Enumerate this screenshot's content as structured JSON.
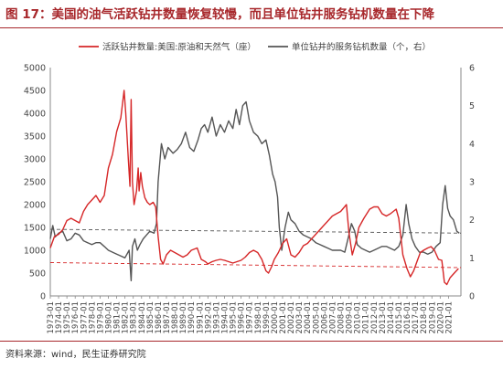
{
  "figure": {
    "title": "图 17：美国的油气活跃钻井数量恢复较慢，而且单位钻井服务钻机数量在下降",
    "source": "资料来源：wind，民生证券研究院"
  },
  "colors": {
    "red": "#d62728",
    "gray": "#555555",
    "title": "#a8282c"
  },
  "chart_data": {
    "type": "line",
    "legend": [
      {
        "name": "活跃钻井数量:美国:原油和天然气（座）",
        "color": "#d62728"
      },
      {
        "name": "单位钻井的服务钻机数量（个，右）",
        "color": "#555555"
      }
    ],
    "legend_placement": "top",
    "y_left": {
      "range": [
        0,
        5000
      ],
      "ticks": [
        "0",
        "500",
        "1000",
        "1500",
        "2000",
        "2500",
        "3000",
        "3500",
        "4000",
        "4500",
        "5000"
      ]
    },
    "y_right": {
      "range": [
        0,
        6
      ],
      "ticks": [
        "0",
        "1",
        "2",
        "3",
        "4",
        "5",
        "6"
      ]
    },
    "x_range": [
      1973.0,
      2022.5
    ],
    "x_ticks": [
      "1973-01",
      "1974-01",
      "1975-01",
      "1976-01",
      "1977-01",
      "1978-01",
      "1979-01",
      "1980-01",
      "1981-01",
      "1982-01",
      "1983-01",
      "1984-01",
      "1985-01",
      "1986-01",
      "1987-01",
      "1988-01",
      "1989-01",
      "1990-01",
      "1991-01",
      "1992-01",
      "1993-01",
      "1994-01",
      "1995-01",
      "1996-01",
      "1997-01",
      "1998-01",
      "1999-01",
      "2000-01",
      "2001-01",
      "2002-01",
      "2003-01",
      "2004-01",
      "2005-01",
      "2006-01",
      "2007-01",
      "2008-01",
      "2009-01",
      "2010-01",
      "2011-01",
      "2012-01",
      "2013-01",
      "2014-01",
      "2015-01",
      "2016-01",
      "2017-01",
      "2018-01",
      "2019-01",
      "2020-01",
      "2021-01"
    ],
    "x_tick_labels": [
      "1973-01",
      "1974-01",
      "1975-01",
      "1976-01",
      "1977-01",
      "1978-01",
      "1979-01",
      "1980-01",
      "1981-01",
      "1982-01",
      "1983-01",
      "1984-01",
      "1985-01",
      "1986-01",
      "1987-01",
      "1988-01",
      "1989-01",
      "1990-01",
      "1991-01",
      "1992-01",
      "1993-01",
      "1994-01",
      "1995-01",
      "1996-01",
      "1997-01",
      "1998-01",
      "1999-01",
      "2000-01",
      "2001-01",
      "2002-01",
      "2003-01",
      "2004-01",
      "2005-01",
      "2006-01",
      "2007-01",
      "2008-01",
      "2009-01",
      "2010-01",
      "2011-01",
      "2012-01",
      "2013-01",
      "2014-01",
      "2015-01",
      "2016-01",
      "2017-01",
      "2018-01",
      "2019-01",
      "2020-01",
      "2021-01"
    ],
    "series": [
      {
        "name": "活跃钻井数量:美国:原油和天然气（座）",
        "axis": "left",
        "points": [
          [
            1973.0,
            1050
          ],
          [
            1973.5,
            1300
          ],
          [
            1974.0,
            1350
          ],
          [
            1974.5,
            1450
          ],
          [
            1975.0,
            1650
          ],
          [
            1975.5,
            1700
          ],
          [
            1976.0,
            1650
          ],
          [
            1976.5,
            1600
          ],
          [
            1977.0,
            1850
          ],
          [
            1977.5,
            2000
          ],
          [
            1978.0,
            2100
          ],
          [
            1978.5,
            2200
          ],
          [
            1979.0,
            2050
          ],
          [
            1979.5,
            2200
          ],
          [
            1980.0,
            2800
          ],
          [
            1980.5,
            3100
          ],
          [
            1981.0,
            3600
          ],
          [
            1981.5,
            3900
          ],
          [
            1981.9,
            4500
          ],
          [
            1982.1,
            4000
          ],
          [
            1982.4,
            3000
          ],
          [
            1982.6,
            2400
          ],
          [
            1982.75,
            4300
          ],
          [
            1982.9,
            2500
          ],
          [
            1983.1,
            2000
          ],
          [
            1983.4,
            2300
          ],
          [
            1983.6,
            2800
          ],
          [
            1983.7,
            2300
          ],
          [
            1983.9,
            2700
          ],
          [
            1984.1,
            2400
          ],
          [
            1984.4,
            2150
          ],
          [
            1984.7,
            2050
          ],
          [
            1985.0,
            2000
          ],
          [
            1985.4,
            2050
          ],
          [
            1985.7,
            1950
          ],
          [
            1986.0,
            1300
          ],
          [
            1986.3,
            800
          ],
          [
            1986.6,
            700
          ],
          [
            1987.0,
            900
          ],
          [
            1987.5,
            1000
          ],
          [
            1988.0,
            950
          ],
          [
            1988.5,
            900
          ],
          [
            1989.0,
            850
          ],
          [
            1989.5,
            900
          ],
          [
            1990.0,
            1000
          ],
          [
            1990.7,
            1050
          ],
          [
            1991.2,
            800
          ],
          [
            1991.7,
            750
          ],
          [
            1992.0,
            700
          ],
          [
            1992.5,
            750
          ],
          [
            1993.0,
            780
          ],
          [
            1993.5,
            800
          ],
          [
            1994.0,
            780
          ],
          [
            1994.5,
            750
          ],
          [
            1995.0,
            720
          ],
          [
            1995.5,
            750
          ],
          [
            1996.0,
            780
          ],
          [
            1996.5,
            850
          ],
          [
            1997.0,
            950
          ],
          [
            1997.5,
            1000
          ],
          [
            1998.0,
            950
          ],
          [
            1998.5,
            800
          ],
          [
            1999.0,
            550
          ],
          [
            1999.3,
            500
          ],
          [
            1999.7,
            650
          ],
          [
            2000.0,
            800
          ],
          [
            2000.5,
            950
          ],
          [
            2001.0,
            1150
          ],
          [
            2001.5,
            1250
          ],
          [
            2002.0,
            900
          ],
          [
            2002.5,
            850
          ],
          [
            2003.0,
            950
          ],
          [
            2003.5,
            1100
          ],
          [
            2004.0,
            1150
          ],
          [
            2004.5,
            1250
          ],
          [
            2005.0,
            1350
          ],
          [
            2005.5,
            1450
          ],
          [
            2006.0,
            1550
          ],
          [
            2006.5,
            1650
          ],
          [
            2007.0,
            1750
          ],
          [
            2007.5,
            1800
          ],
          [
            2008.0,
            1850
          ],
          [
            2008.7,
            2000
          ],
          [
            2009.0,
            1400
          ],
          [
            2009.4,
            900
          ],
          [
            2009.8,
            1150
          ],
          [
            2010.2,
            1500
          ],
          [
            2010.8,
            1700
          ],
          [
            2011.5,
            1900
          ],
          [
            2012.0,
            1950
          ],
          [
            2012.5,
            1950
          ],
          [
            2013.0,
            1800
          ],
          [
            2013.5,
            1750
          ],
          [
            2014.0,
            1800
          ],
          [
            2014.7,
            1900
          ],
          [
            2015.0,
            1700
          ],
          [
            2015.5,
            900
          ],
          [
            2016.0,
            600
          ],
          [
            2016.4,
            420
          ],
          [
            2016.8,
            550
          ],
          [
            2017.2,
            750
          ],
          [
            2017.6,
            950
          ],
          [
            2018.0,
            1000
          ],
          [
            2018.5,
            1050
          ],
          [
            2018.9,
            1080
          ],
          [
            2019.3,
            1000
          ],
          [
            2019.8,
            800
          ],
          [
            2020.2,
            780
          ],
          [
            2020.5,
            300
          ],
          [
            2020.8,
            250
          ],
          [
            2021.2,
            400
          ],
          [
            2021.7,
            500
          ],
          [
            2022.2,
            600
          ]
        ]
      },
      {
        "name": "单位钻井的服务钻机数量（个，右）",
        "axis": "right",
        "points": [
          [
            1973.0,
            1.5
          ],
          [
            1973.3,
            1.85
          ],
          [
            1973.6,
            1.55
          ],
          [
            1974.0,
            1.65
          ],
          [
            1974.5,
            1.7
          ],
          [
            1975.0,
            1.45
          ],
          [
            1975.5,
            1.5
          ],
          [
            1976.0,
            1.65
          ],
          [
            1976.5,
            1.6
          ],
          [
            1977.0,
            1.45
          ],
          [
            1977.5,
            1.4
          ],
          [
            1978.0,
            1.35
          ],
          [
            1978.5,
            1.4
          ],
          [
            1979.0,
            1.4
          ],
          [
            1979.5,
            1.3
          ],
          [
            1980.0,
            1.2
          ],
          [
            1980.5,
            1.15
          ],
          [
            1981.0,
            1.1
          ],
          [
            1981.5,
            1.05
          ],
          [
            1982.0,
            1.0
          ],
          [
            1982.5,
            1.2
          ],
          [
            1982.75,
            0.4
          ],
          [
            1982.9,
            1.3
          ],
          [
            1983.2,
            1.5
          ],
          [
            1983.5,
            1.2
          ],
          [
            1983.8,
            1.35
          ],
          [
            1984.2,
            1.5
          ],
          [
            1984.6,
            1.6
          ],
          [
            1985.0,
            1.7
          ],
          [
            1985.5,
            1.65
          ],
          [
            1985.8,
            1.9
          ],
          [
            1986.0,
            3.0
          ],
          [
            1986.4,
            4.0
          ],
          [
            1986.8,
            3.6
          ],
          [
            1987.2,
            3.9
          ],
          [
            1987.8,
            3.75
          ],
          [
            1988.3,
            3.85
          ],
          [
            1988.8,
            4.0
          ],
          [
            1989.3,
            4.3
          ],
          [
            1989.8,
            3.9
          ],
          [
            1990.3,
            3.8
          ],
          [
            1990.8,
            4.1
          ],
          [
            1991.2,
            4.4
          ],
          [
            1991.6,
            4.5
          ],
          [
            1992.0,
            4.3
          ],
          [
            1992.5,
            4.7
          ],
          [
            1993.0,
            4.2
          ],
          [
            1993.5,
            4.5
          ],
          [
            1994.0,
            4.3
          ],
          [
            1994.5,
            4.6
          ],
          [
            1995.0,
            4.4
          ],
          [
            1995.4,
            4.9
          ],
          [
            1995.8,
            4.5
          ],
          [
            1996.2,
            5.0
          ],
          [
            1996.6,
            5.1
          ],
          [
            1997.0,
            4.6
          ],
          [
            1997.5,
            4.3
          ],
          [
            1998.0,
            4.2
          ],
          [
            1998.5,
            4.0
          ],
          [
            1999.0,
            4.1
          ],
          [
            1999.4,
            3.7
          ],
          [
            1999.8,
            3.2
          ],
          [
            2000.1,
            3.0
          ],
          [
            2000.4,
            2.6
          ],
          [
            2000.6,
            1.8
          ],
          [
            2000.9,
            1.2
          ],
          [
            2001.3,
            1.8
          ],
          [
            2001.7,
            2.2
          ],
          [
            2002.0,
            2.0
          ],
          [
            2002.5,
            1.9
          ],
          [
            2003.0,
            1.7
          ],
          [
            2003.5,
            1.6
          ],
          [
            2004.0,
            1.55
          ],
          [
            2004.5,
            1.5
          ],
          [
            2005.0,
            1.4
          ],
          [
            2005.5,
            1.35
          ],
          [
            2006.0,
            1.3
          ],
          [
            2006.5,
            1.25
          ],
          [
            2007.0,
            1.2
          ],
          [
            2007.5,
            1.2
          ],
          [
            2008.0,
            1.2
          ],
          [
            2008.5,
            1.15
          ],
          [
            2009.0,
            1.6
          ],
          [
            2009.3,
            1.9
          ],
          [
            2009.7,
            1.7
          ],
          [
            2010.0,
            1.35
          ],
          [
            2010.5,
            1.25
          ],
          [
            2011.0,
            1.2
          ],
          [
            2011.5,
            1.15
          ],
          [
            2012.0,
            1.2
          ],
          [
            2012.5,
            1.25
          ],
          [
            2013.0,
            1.3
          ],
          [
            2013.5,
            1.3
          ],
          [
            2014.0,
            1.25
          ],
          [
            2014.5,
            1.2
          ],
          [
            2015.0,
            1.3
          ],
          [
            2015.5,
            1.6
          ],
          [
            2015.9,
            2.4
          ],
          [
            2016.2,
            1.9
          ],
          [
            2016.6,
            1.5
          ],
          [
            2017.0,
            1.3
          ],
          [
            2017.5,
            1.15
          ],
          [
            2018.0,
            1.15
          ],
          [
            2018.5,
            1.1
          ],
          [
            2019.0,
            1.15
          ],
          [
            2019.5,
            1.3
          ],
          [
            2020.0,
            1.4
          ],
          [
            2020.3,
            2.4
          ],
          [
            2020.6,
            2.9
          ],
          [
            2020.9,
            2.3
          ],
          [
            2021.2,
            2.1
          ],
          [
            2021.6,
            2.0
          ],
          [
            2022.0,
            1.7
          ],
          [
            2022.3,
            1.65
          ]
        ]
      }
    ],
    "trend_lines": [
      {
        "axis": "right",
        "color": "#555555",
        "from": [
          1973.0,
          1.75
        ],
        "to": [
          2022.5,
          1.65
        ]
      },
      {
        "axis": "left",
        "color": "#d62728",
        "from": [
          1973.0,
          730
        ],
        "to": [
          2022.5,
          620
        ]
      }
    ]
  }
}
